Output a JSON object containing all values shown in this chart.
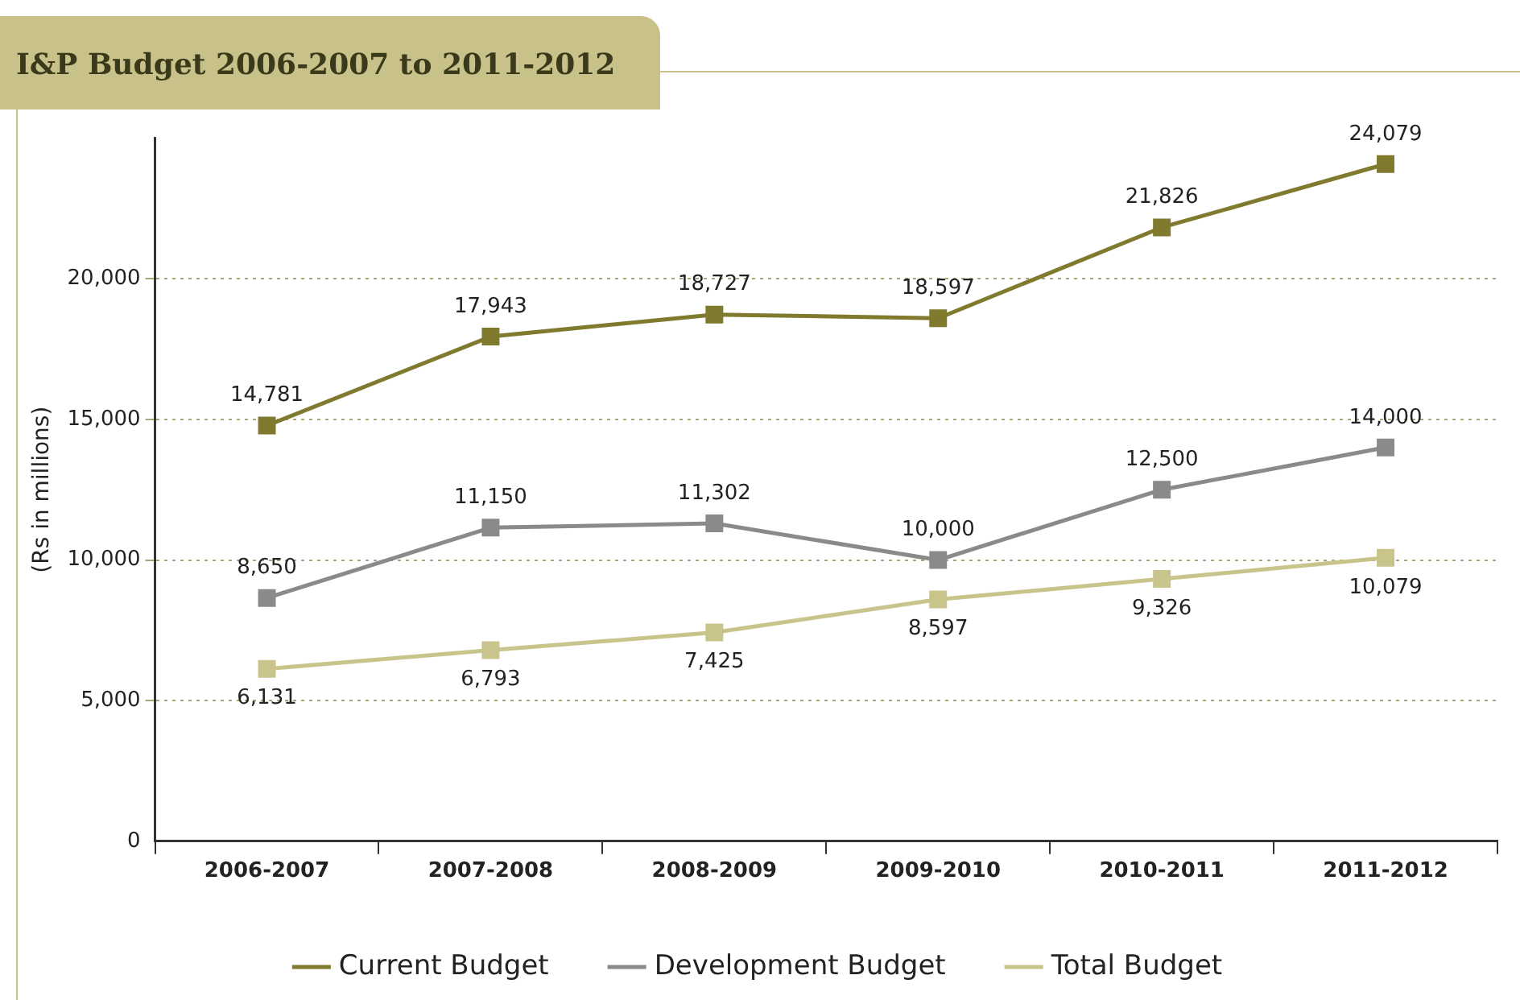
{
  "chart_data": {
    "type": "line",
    "title": "I&P Budget 2006-2007 to 2011-2012",
    "ylabel": "(Rs in millions)",
    "categories": [
      "2006-2007",
      "2007-2008",
      "2008-2009",
      "2009-2010",
      "2010-2011",
      "2011-2012"
    ],
    "series": [
      {
        "name": "Current Budget",
        "color": "#7f7a2e",
        "values": [
          14781,
          17943,
          18727,
          18597,
          21826,
          24079
        ],
        "value_labels": [
          "14,781",
          "17,943",
          "18,727",
          "18,597",
          "21,826",
          "24,079"
        ]
      },
      {
        "name": "Development Budget",
        "color": "#8a8a8a",
        "values": [
          8650,
          11150,
          11302,
          10000,
          12500,
          14000
        ],
        "value_labels": [
          "8,650",
          "11,150",
          "11,302",
          "10,000",
          "12,500",
          "14,000"
        ]
      },
      {
        "name": "Total Budget",
        "color": "#c9c48c",
        "values": [
          6131,
          6793,
          7425,
          8597,
          9326,
          10079
        ],
        "value_labels": [
          "6,131",
          "6,793",
          "7,425",
          "8,597",
          "9,326",
          "10,079"
        ]
      }
    ],
    "ylim": [
      0,
      25000
    ],
    "yticks": [
      {
        "value": 0,
        "label": "0"
      },
      {
        "value": 5000,
        "label": "5,000"
      },
      {
        "value": 10000,
        "label": "10,000"
      },
      {
        "value": 15000,
        "label": "15,000"
      },
      {
        "value": 20000,
        "label": "20,000"
      }
    ],
    "grid": "y",
    "legend": "bottom",
    "marker": "square",
    "line_style": "solid"
  }
}
